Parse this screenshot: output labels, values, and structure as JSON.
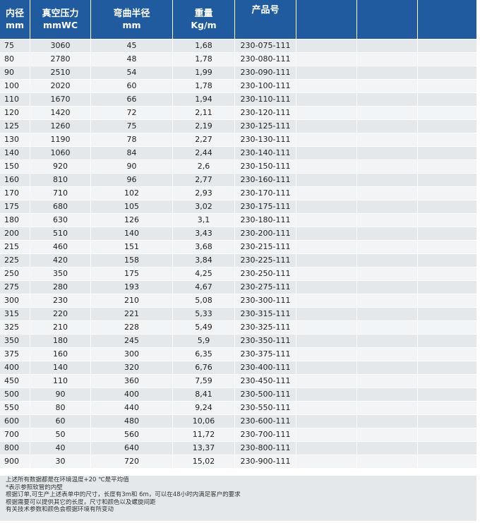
{
  "header": {
    "col1": {
      "line1": "内径",
      "line2": "mm"
    },
    "col2": {
      "line1": "真空压力",
      "line2": "mmWC"
    },
    "col3": {
      "line1": "弯曲半径",
      "line2": "mm"
    },
    "col4": {
      "line1": "重量",
      "line2": "Kg/m"
    },
    "col5": {
      "line1": "产品号",
      "line2": ""
    }
  },
  "rows": [
    [
      "75",
      "3060",
      "45",
      "1,68",
      "230-075-111"
    ],
    [
      "80",
      "2780",
      "48",
      "1,78",
      "230-080-111"
    ],
    [
      "90",
      "2510",
      "54",
      "1,99",
      "230-090-111"
    ],
    [
      "100",
      "2020",
      "60",
      "1,78",
      "230-100-111"
    ],
    [
      "110",
      "1670",
      "66",
      "1,94",
      "230-110-111"
    ],
    [
      "120",
      "1420",
      "72",
      "2,11",
      "230-120-111"
    ],
    [
      "125",
      "1260",
      "75",
      "2,19",
      "230-125-111"
    ],
    [
      "130",
      "1190",
      "78",
      "2,27",
      "230-130-111"
    ],
    [
      "140",
      "1060",
      "84",
      "2,44",
      "230-140-111"
    ],
    [
      "150",
      "920",
      "90",
      "2,6",
      "230-150-111"
    ],
    [
      "160",
      "810",
      "96",
      "2,77",
      "230-160-111"
    ],
    [
      "170",
      "710",
      "102",
      "2,93",
      "230-170-111"
    ],
    [
      "175",
      "680",
      "105",
      "3,02",
      "230-175-111"
    ],
    [
      "180",
      "630",
      "126",
      "3,1",
      "230-180-111"
    ],
    [
      "200",
      "510",
      "140",
      "3,43",
      "230-200-111"
    ],
    [
      "215",
      "460",
      "151",
      "3,68",
      "230-215-111"
    ],
    [
      "225",
      "420",
      "158",
      "3,84",
      "230-225-111"
    ],
    [
      "250",
      "350",
      "175",
      "4,25",
      "230-250-111"
    ],
    [
      "275",
      "280",
      "193",
      "4,67",
      "230-275-111"
    ],
    [
      "300",
      "230",
      "210",
      "5,08",
      "230-300-111"
    ],
    [
      "315",
      "220",
      "221",
      "5,33",
      "230-315-111"
    ],
    [
      "325",
      "210",
      "228",
      "5,49",
      "230-325-111"
    ],
    [
      "350",
      "180",
      "245",
      "5,9",
      "230-350-111"
    ],
    [
      "375",
      "160",
      "300",
      "6,35",
      "230-375-111"
    ],
    [
      "400",
      "140",
      "320",
      "6,76",
      "230-400-111"
    ],
    [
      "450",
      "110",
      "360",
      "7,59",
      "230-450-111"
    ],
    [
      "500",
      "90",
      "400",
      "8,41",
      "230-500-111"
    ],
    [
      "550",
      "80",
      "440",
      "9,24",
      "230-550-111"
    ],
    [
      "600",
      "60",
      "480",
      "10,06",
      "230-600-111"
    ],
    [
      "700",
      "50",
      "560",
      "11,72",
      "230-700-111"
    ],
    [
      "800",
      "40",
      "640",
      "13,37",
      "230-800-111"
    ],
    [
      "900",
      "30",
      "720",
      "15,02",
      "230-900-111"
    ]
  ],
  "notes": [
    "上述所有数据都是在环境温度+20 ℃是平均值",
    "*表示参照软管的内壁",
    "根据订单,可生产上述表单中的尺寸，长度有3m和 6m，可以在48小时内满足客户的要求",
    "根据需要可以提供其它的长度，尺寸和颜色以及螺旋间距",
    "有关技术参数和颜色会根据环境有所变动"
  ]
}
